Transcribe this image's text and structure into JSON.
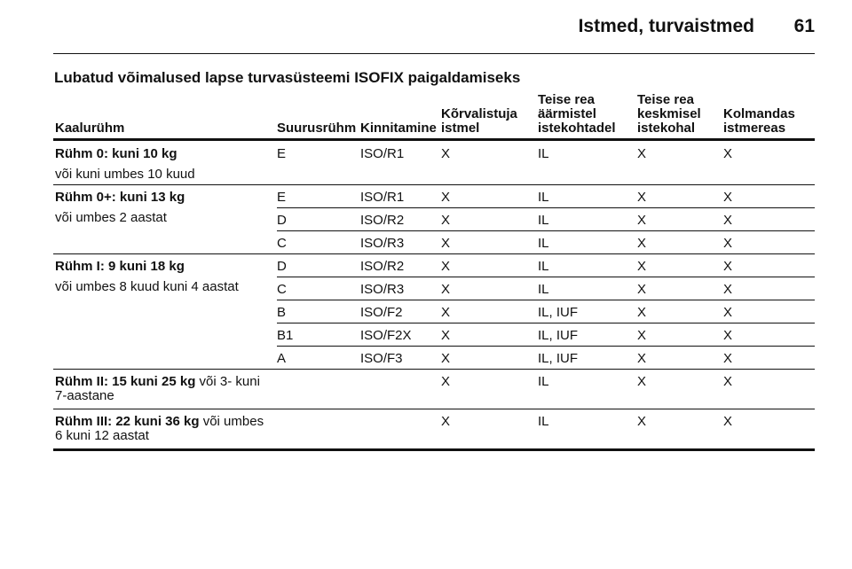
{
  "header": {
    "title": "Istmed, turvaistmed",
    "page": "61"
  },
  "table": {
    "title": "Lubatud võimalused lapse turvasüsteemi ISOFIX paigaldamiseks",
    "columns": [
      "Kaalurühm",
      "Suurusrühm",
      "Kinnitamine",
      "Kõrvalistuja\nistmel",
      "Teise rea\näärmistel\nistekohtadel",
      "Teise rea\nkeskmisel\nistekohal",
      "Kolmandas\nistmereas"
    ],
    "groups": [
      {
        "title": "Rühm 0: kuni 10 kg",
        "subtitle": "või kuni umbes 10 kuud",
        "rows": [
          [
            "E",
            "ISO/R1",
            "X",
            "IL",
            "X",
            "X"
          ]
        ]
      },
      {
        "title": "Rühm 0+: kuni 13 kg",
        "subtitle": "või umbes 2 aastat",
        "rows": [
          [
            "E",
            "ISO/R1",
            "X",
            "IL",
            "X",
            "X"
          ],
          [
            "D",
            "ISO/R2",
            "X",
            "IL",
            "X",
            "X"
          ],
          [
            "C",
            "ISO/R3",
            "X",
            "IL",
            "X",
            "X"
          ]
        ]
      },
      {
        "title": "Rühm I: 9 kuni 18 kg",
        "subtitle": "või umbes 8 kuud kuni 4 aastat",
        "rows": [
          [
            "D",
            "ISO/R2",
            "X",
            "IL",
            "X",
            "X"
          ],
          [
            "C",
            "ISO/R3",
            "X",
            "IL",
            "X",
            "X"
          ],
          [
            "B",
            "ISO/F2",
            "X",
            "IL, IUF",
            "X",
            "X"
          ],
          [
            "B1",
            "ISO/F2X",
            "X",
            "IL, IUF",
            "X",
            "X"
          ],
          [
            "A",
            "ISO/F3",
            "X",
            "IL, IUF",
            "X",
            "X"
          ]
        ]
      },
      {
        "title": "Rühm II: 15 kuni 25 kg",
        "note": " või 3- kuni\n7-aastane",
        "rows": [
          [
            "X",
            "IL",
            "X",
            "X"
          ]
        ]
      },
      {
        "title": "Rühm III: 22 kuni 36 kg",
        "note": " või umbes\n6 kuni 12 aastat",
        "rows": [
          [
            "X",
            "IL",
            "X",
            "X"
          ]
        ]
      }
    ]
  }
}
